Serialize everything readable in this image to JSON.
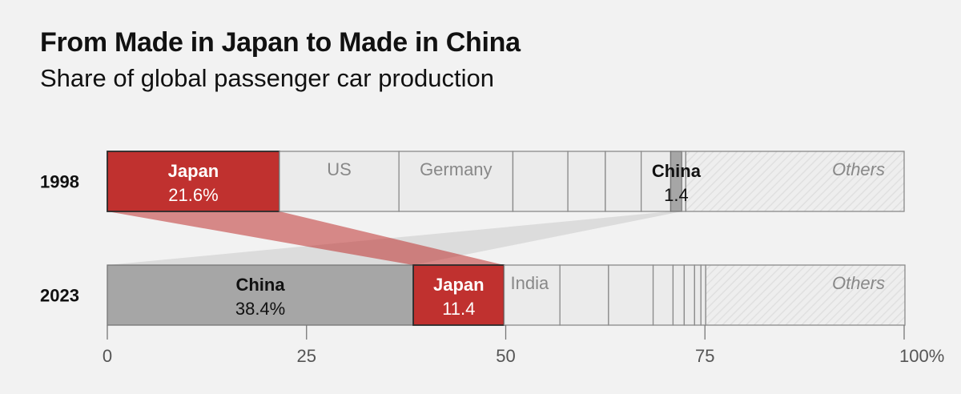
{
  "title": "From Made in Japan to Made in China",
  "subtitle": "Share of global passenger car production",
  "chart_data": {
    "type": "stacked-bar",
    "title": "From Made in Japan to Made in China",
    "subtitle": "Share of global passenger car production",
    "xlim": [
      0,
      100
    ],
    "ticks": [
      0,
      25,
      50,
      75,
      100
    ],
    "tick_labels": [
      "0",
      "25",
      "50",
      "75",
      "100%"
    ],
    "rows": [
      {
        "year": "1998",
        "segments": [
          {
            "name": "Japan",
            "value": 21.6,
            "label": "Japan",
            "value_label": "21.6%",
            "style": "japan"
          },
          {
            "name": "US",
            "value": 15.0,
            "label": "US",
            "style": "plain"
          },
          {
            "name": "Germany",
            "value": 14.3,
            "label": "Germany",
            "style": "plain"
          },
          {
            "name": "",
            "value": 6.9,
            "style": "plain"
          },
          {
            "name": "",
            "value": 4.7,
            "style": "plain"
          },
          {
            "name": "",
            "value": 4.5,
            "style": "plain"
          },
          {
            "name": "",
            "value": 3.7,
            "style": "plain"
          },
          {
            "name": "China",
            "value": 1.4,
            "label": "China",
            "value_label": "1.4",
            "style": "china"
          },
          {
            "name": "",
            "value": 0.5,
            "style": "plain"
          },
          {
            "name": "Others",
            "value": 27.4,
            "label": "Others",
            "style": "others"
          }
        ]
      },
      {
        "year": "2023",
        "segments": [
          {
            "name": "China",
            "value": 38.4,
            "label": "China",
            "value_label": "38.4%",
            "style": "china"
          },
          {
            "name": "Japan",
            "value": 11.4,
            "label": "Japan",
            "value_label": "11.4",
            "style": "japan"
          },
          {
            "name": "India",
            "value": 7.0,
            "label": "India",
            "style": "plain"
          },
          {
            "name": "",
            "value": 6.1,
            "style": "plain"
          },
          {
            "name": "",
            "value": 5.6,
            "style": "plain"
          },
          {
            "name": "",
            "value": 2.5,
            "style": "plain"
          },
          {
            "name": "",
            "value": 1.4,
            "style": "plain"
          },
          {
            "name": "",
            "value": 1.3,
            "style": "plain"
          },
          {
            "name": "",
            "value": 0.8,
            "style": "plain"
          },
          {
            "name": "",
            "value": 0.6,
            "style": "plain"
          },
          {
            "name": "Others",
            "value": 25.0,
            "label": "Others",
            "style": "others"
          }
        ]
      }
    ]
  },
  "colors": {
    "background": "#f2f2f2",
    "japan": "#c0312f",
    "japan_connector": "#c0312f",
    "china_2023": "#a6a6a6",
    "china_1998": "#a6a6a6",
    "segment_fill": "#ebebeb",
    "segment_stroke": "#8a8a8a",
    "others_hatch": "#e2e2e2",
    "connector_gray": "#d4d4d4"
  }
}
